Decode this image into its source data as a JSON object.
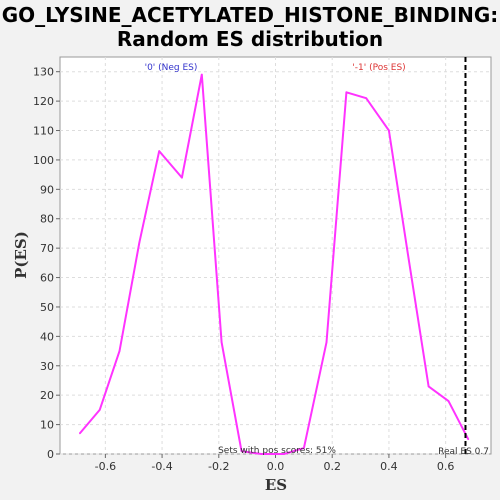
{
  "chart_data": {
    "type": "line",
    "title_line1": "GO_LYSINE_ACETYLATED_HISTONE_BINDING:",
    "title_line2": "Random ES distribution",
    "xlabel": "ES",
    "ylabel": "P(ES)",
    "xlim": [
      -0.76,
      0.76
    ],
    "ylim": [
      0,
      135
    ],
    "xticks": [
      "-0.6",
      "-0.4",
      "-0.2",
      "0.0",
      "0.2",
      "0.4",
      "0.6"
    ],
    "xtick_values": [
      -0.6,
      -0.4,
      -0.2,
      0.0,
      0.2,
      0.4,
      0.6
    ],
    "yticks": [
      "0",
      "10",
      "20",
      "30",
      "40",
      "50",
      "60",
      "70",
      "80",
      "90",
      "100",
      "110",
      "120",
      "130"
    ],
    "ytick_values": [
      0,
      10,
      20,
      30,
      40,
      50,
      60,
      70,
      80,
      90,
      100,
      110,
      120,
      130
    ],
    "grid": true,
    "series": [
      {
        "color": "#ff33ff",
        "x": [
          -0.69,
          -0.62,
          -0.55,
          -0.48,
          -0.41,
          -0.33,
          -0.26,
          -0.19,
          -0.12,
          -0.05,
          0.03,
          0.1,
          0.18,
          0.25,
          0.32,
          0.4,
          0.47,
          0.54,
          0.61,
          0.68
        ],
        "y": [
          7,
          15,
          35,
          72,
          103,
          94,
          129,
          38,
          1,
          0,
          0,
          2,
          38,
          123,
          121,
          110,
          66,
          23,
          18,
          5
        ]
      }
    ],
    "real_es": 0.67,
    "annotations": {
      "neg_label": "'0' (Neg ES)",
      "pos_label": "'-1' (Pos ES)",
      "pos_scores": "Sets with pos scores: 51%",
      "real_es_label": "Real ES 0.7"
    },
    "colors": {
      "neg": "#3333cc",
      "pos": "#dd3333",
      "line": "#ff33ff"
    }
  }
}
